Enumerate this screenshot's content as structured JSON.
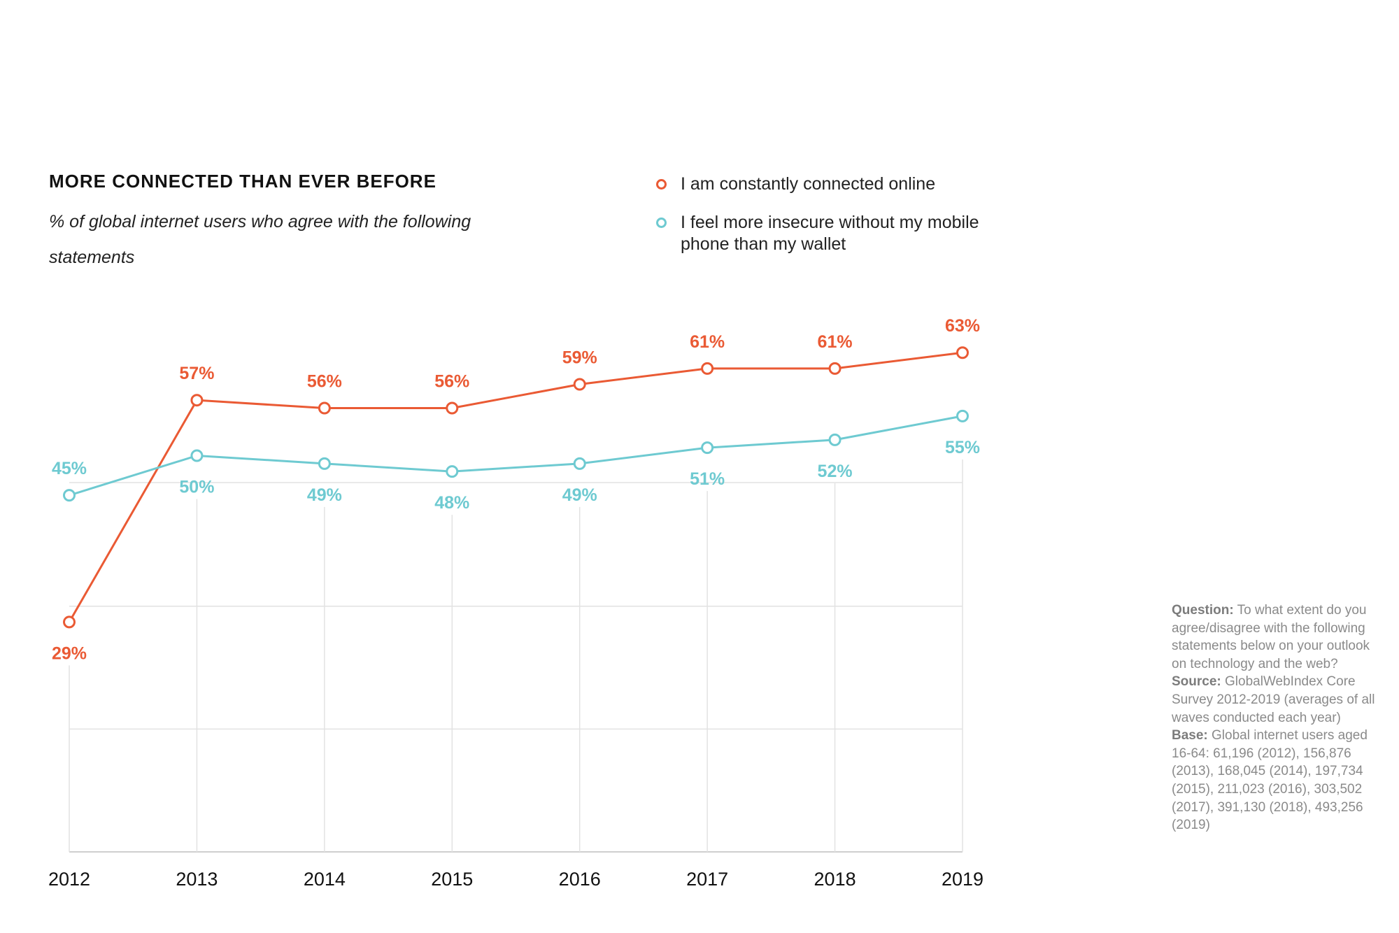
{
  "colors": {
    "connected": "#ea5a34",
    "insecure": "#6ecad1",
    "grid": "#e2e2e2"
  },
  "chart_data": {
    "type": "line",
    "title": "MORE CONNECTED THAN EVER BEFORE",
    "subtitle": "% of global internet users who agree with the following statements",
    "x": [
      "2012",
      "2013",
      "2014",
      "2015",
      "2016",
      "2017",
      "2018",
      "2019"
    ],
    "series": [
      {
        "name": "I am constantly connected online",
        "values": [
          29,
          57,
          56,
          56,
          59,
          61,
          61,
          63
        ],
        "labels": [
          "29%",
          "57%",
          "56%",
          "56%",
          "59%",
          "61%",
          "61%",
          "63%"
        ]
      },
      {
        "name": "I feel more insecure without my mobile phone than my wallet",
        "values": [
          45,
          50,
          49,
          48,
          49,
          51,
          52,
          55
        ],
        "labels": [
          "45%",
          "50%",
          "49%",
          "48%",
          "49%",
          "51%",
          "52%",
          "55%"
        ]
      }
    ],
    "ylim": [
      0,
      63
    ],
    "grid": true,
    "legend": "top-right"
  },
  "notes": [
    {
      "label": "Question:",
      "text": "To what extent do you agree/disagree with the following statements below on your outlook on technology and the web?"
    },
    {
      "label": "Source:",
      "text": "GlobalWebIndex Core Survey 2012-2019 (averages of all waves conducted each year)"
    },
    {
      "label": "Base:",
      "text": "Global internet users aged 16-64: 61,196 (2012), 156,876 (2013), 168,045 (2014), 197,734 (2015), 211,023 (2016), 303,502 (2017), 391,130 (2018), 493,256 (2019)"
    }
  ]
}
